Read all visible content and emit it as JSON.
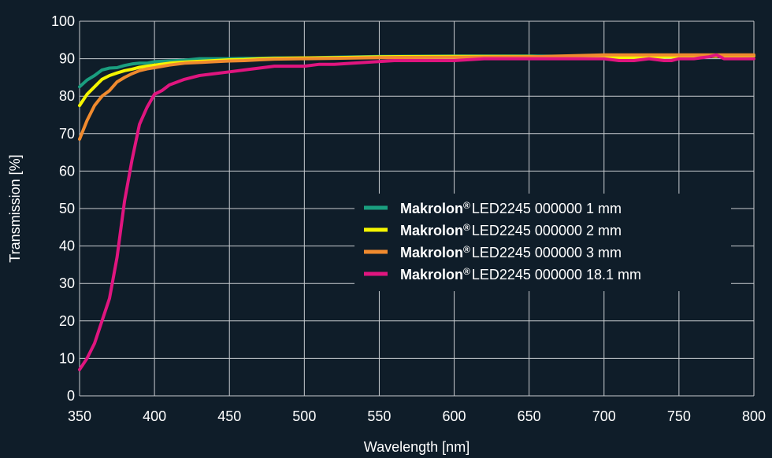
{
  "chart_data": {
    "type": "line",
    "xlabel": "Wavelength [nm]",
    "ylabel": "Transmission [%]",
    "xlim": [
      350,
      800
    ],
    "ylim": [
      0,
      100
    ],
    "xticks": [
      350,
      400,
      450,
      500,
      550,
      600,
      650,
      700,
      750,
      800
    ],
    "yticks": [
      0,
      10,
      20,
      30,
      40,
      50,
      60,
      70,
      80,
      90,
      100
    ],
    "grid": true,
    "legend_position": "center-right",
    "series": [
      {
        "name": "1 mm",
        "brand": "Makrolon",
        "brand_mark": "®",
        "product": "LED2245 000000",
        "color": "#1a9e7f",
        "x": [
          350,
          355,
          360,
          365,
          370,
          375,
          380,
          385,
          390,
          395,
          400,
          410,
          420,
          430,
          440,
          450,
          460,
          470,
          480,
          500,
          520,
          550,
          600,
          650,
          700,
          750,
          800
        ],
        "y": [
          82.5,
          84.3,
          85.5,
          87,
          87.5,
          87.6,
          88.2,
          88.6,
          88.8,
          88.8,
          89.2,
          89.4,
          89.6,
          90,
          90,
          90,
          90.1,
          90.1,
          90.2,
          90.2,
          90.4,
          90.6,
          90.7,
          90.7,
          90.6,
          90.7,
          90.8
        ]
      },
      {
        "name": "2 mm",
        "brand": "Makrolon",
        "brand_mark": "®",
        "product": "LED2245 000000",
        "color": "#f5f500",
        "x": [
          350,
          355,
          360,
          365,
          370,
          375,
          380,
          385,
          390,
          395,
          400,
          410,
          420,
          430,
          440,
          450,
          460,
          470,
          480,
          500,
          520,
          550,
          600,
          650,
          700,
          750,
          800
        ],
        "y": [
          77.5,
          80.5,
          82.5,
          84.5,
          85.5,
          86.2,
          86.8,
          87.2,
          87.7,
          88,
          88.3,
          88.8,
          89.1,
          89.3,
          89.5,
          89.7,
          89.8,
          90,
          90.1,
          90.2,
          90.3,
          90.5,
          90.6,
          90.6,
          90.3,
          90.5,
          90.8
        ]
      },
      {
        "name": "3 mm",
        "brand": "Makrolon",
        "brand_mark": "®",
        "product": "LED2245 000000",
        "color": "#f08a2e",
        "x": [
          350,
          355,
          360,
          365,
          370,
          375,
          380,
          385,
          390,
          395,
          400,
          410,
          420,
          430,
          440,
          450,
          460,
          470,
          480,
          500,
          520,
          550,
          600,
          650,
          700,
          750,
          800
        ],
        "y": [
          68.5,
          73.5,
          77.5,
          80,
          81.5,
          83.8,
          85,
          86,
          86.8,
          87.3,
          87.6,
          88.3,
          88.8,
          89,
          89.2,
          89.4,
          89.5,
          89.7,
          89.9,
          90,
          90.1,
          90.3,
          90.4,
          90.5,
          91,
          91,
          91
        ]
      },
      {
        "name": "18.1 mm",
        "brand": "Makrolon",
        "brand_mark": "®",
        "product": "LED2245 000000",
        "color": "#e0157f",
        "x": [
          350,
          355,
          360,
          365,
          370,
          375,
          380,
          385,
          390,
          395,
          400,
          405,
          410,
          420,
          430,
          440,
          450,
          460,
          470,
          480,
          490,
          500,
          510,
          520,
          540,
          560,
          580,
          600,
          620,
          640,
          660,
          680,
          700,
          710,
          720,
          730,
          740,
          745,
          750,
          760,
          770,
          775,
          780,
          790,
          800
        ],
        "y": [
          7,
          10,
          14,
          20,
          26,
          37,
          52,
          63,
          72.5,
          77,
          80.5,
          81.5,
          83,
          84.5,
          85.5,
          86,
          86.5,
          87,
          87.5,
          88,
          88,
          88,
          88.5,
          88.5,
          89,
          89.5,
          89.5,
          89.5,
          90,
          90,
          90,
          90,
          90,
          89.5,
          89.5,
          90,
          89.5,
          89.5,
          90,
          90,
          90.5,
          91,
          90,
          90,
          90
        ]
      }
    ]
  }
}
